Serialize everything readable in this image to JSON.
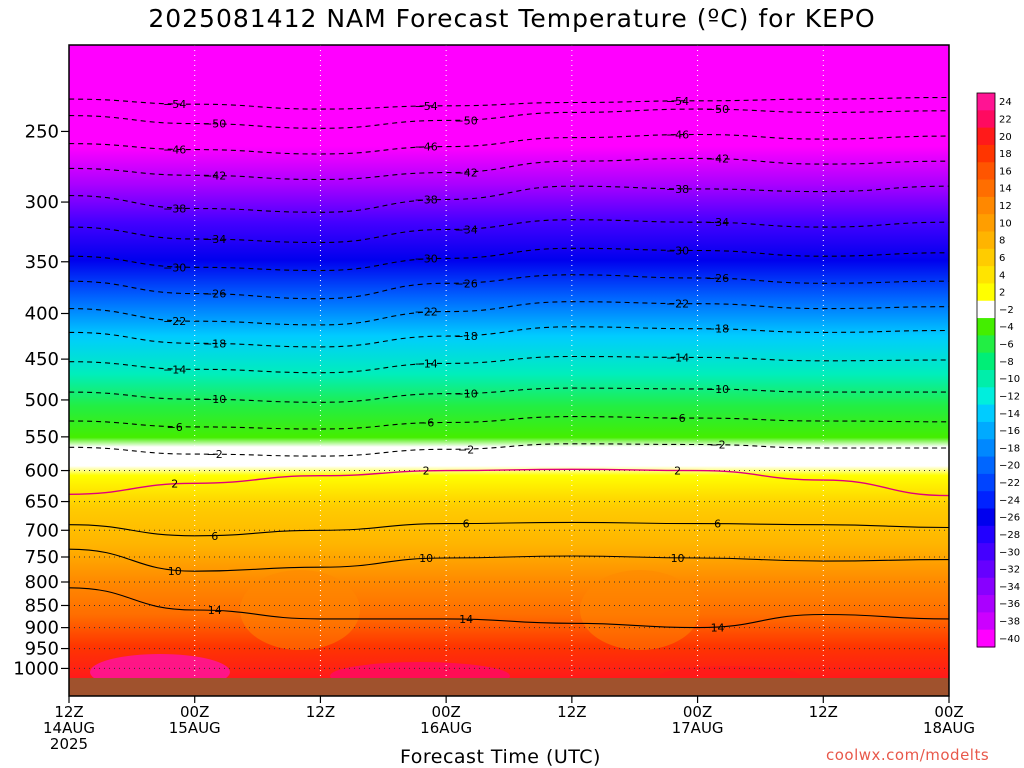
{
  "title": "2025081412 NAM Forecast Temperature (ºC) for KEPO",
  "xlabel": "Forecast Time (UTC)",
  "credit": "coolwx.com/modelts",
  "chart_data": {
    "type": "heatmap",
    "title": "2025081412 NAM Forecast Temperature (ºC) for KEPO",
    "xlabel": "Forecast Time (UTC)",
    "ylabel": "",
    "x_ticks": [
      {
        "hour": 0,
        "lines": [
          "12Z",
          "14AUG",
          "2025"
        ]
      },
      {
        "hour": 12,
        "lines": [
          "00Z",
          "15AUG"
        ]
      },
      {
        "hour": 24,
        "lines": [
          "12Z"
        ]
      },
      {
        "hour": 36,
        "lines": [
          "00Z",
          "16AUG"
        ]
      },
      {
        "hour": 48,
        "lines": [
          "12Z"
        ]
      },
      {
        "hour": 60,
        "lines": [
          "00Z",
          "17AUG"
        ]
      },
      {
        "hour": 72,
        "lines": [
          "12Z"
        ]
      },
      {
        "hour": 84,
        "lines": [
          "00Z",
          "18AUG"
        ]
      }
    ],
    "xlim": [
      0,
      84
    ],
    "y_levels": [
      1000,
      950,
      900,
      850,
      800,
      750,
      700,
      650,
      600,
      550,
      500,
      450,
      400,
      350,
      300,
      250
    ],
    "ylim": [
      1025,
      200
    ],
    "y_scale": "log",
    "colorbar_labels": [
      "24",
      "22",
      "20",
      "18",
      "16",
      "14",
      "12",
      "10",
      "8",
      "6",
      "4",
      "2",
      "-2",
      "-4",
      "-6",
      "-8",
      "-10",
      "-12",
      "-14",
      "-16",
      "-18",
      "-20",
      "-22",
      "-24",
      "-26",
      "-28",
      "-30",
      "-32",
      "-34",
      "-36",
      "-38",
      "-40"
    ],
    "colorbar_colors": [
      "#ff1493",
      "#ff0a60",
      "#ff1a1a",
      "#ff3500",
      "#ff5500",
      "#ff6e00",
      "#ff8800",
      "#ff9e00",
      "#ffb400",
      "#ffcc00",
      "#ffe400",
      "#ffff00",
      "#ffffff",
      "#44ee00",
      "#22ee44",
      "#00ee77",
      "#00eeaa",
      "#00eedd",
      "#00ccff",
      "#00aaff",
      "#0088ff",
      "#0066ff",
      "#0044ff",
      "#0022ff",
      "#0000ee",
      "#2200ff",
      "#4400ff",
      "#6600ff",
      "#8800ff",
      "#aa00ff",
      "#cc00ff",
      "#ff00ff"
    ],
    "contours": [
      {
        "value": -54,
        "pressure": [
          230,
          233,
          236,
          234,
          232,
          231,
          230,
          229
        ]
      },
      {
        "value": -50,
        "pressure": [
          240,
          245,
          248,
          243,
          238,
          236,
          238,
          237
        ]
      },
      {
        "value": -46,
        "pressure": [
          258,
          262,
          265,
          260,
          254,
          252,
          255,
          253
        ]
      },
      {
        "value": -42,
        "pressure": [
          275,
          280,
          283,
          278,
          270,
          268,
          272,
          270
        ]
      },
      {
        "value": -38,
        "pressure": [
          295,
          305,
          308,
          298,
          288,
          290,
          292,
          288
        ]
      },
      {
        "value": -34,
        "pressure": [
          320,
          330,
          333,
          322,
          314,
          316,
          320,
          316
        ]
      },
      {
        "value": -30,
        "pressure": [
          345,
          355,
          358,
          347,
          338,
          340,
          345,
          342
        ]
      },
      {
        "value": -26,
        "pressure": [
          368,
          380,
          385,
          370,
          362,
          365,
          370,
          368
        ]
      },
      {
        "value": -22,
        "pressure": [
          395,
          408,
          412,
          398,
          388,
          390,
          395,
          393
        ]
      },
      {
        "value": -18,
        "pressure": [
          420,
          432,
          436,
          424,
          414,
          416,
          420,
          418
        ]
      },
      {
        "value": -14,
        "pressure": [
          453,
          462,
          466,
          455,
          447,
          448,
          452,
          451
        ]
      },
      {
        "value": -10,
        "pressure": [
          490,
          499,
          503,
          492,
          485,
          486,
          490,
          490
        ]
      },
      {
        "value": -6,
        "pressure": [
          528,
          536,
          539,
          530,
          522,
          524,
          528,
          529
        ]
      },
      {
        "value": -2,
        "pressure": [
          565,
          575,
          578,
          568,
          560,
          561,
          566,
          566
        ]
      },
      {
        "value": 2,
        "pressure": [
          638,
          620,
          608,
          600,
          598,
          600,
          615,
          640
        ]
      },
      {
        "value": 6,
        "pressure": [
          690,
          710,
          700,
          688,
          686,
          688,
          690,
          695
        ]
      },
      {
        "value": 10,
        "pressure": [
          735,
          778,
          770,
          752,
          748,
          752,
          758,
          755
        ]
      },
      {
        "value": 14,
        "pressure": [
          812,
          860,
          880,
          880,
          890,
          900,
          870,
          880
        ]
      }
    ]
  }
}
